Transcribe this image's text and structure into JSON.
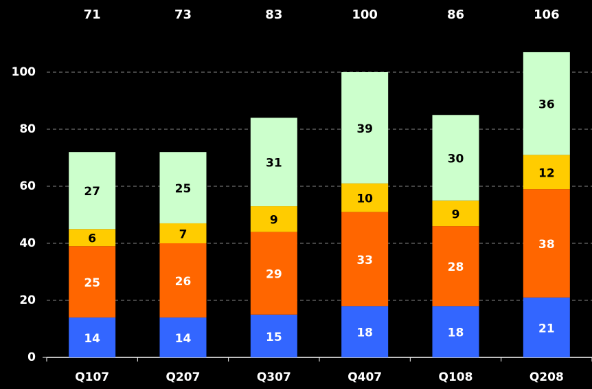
{
  "chart_data": {
    "type": "stacked_bar",
    "categories": [
      "Q107",
      "Q207",
      "Q307",
      "Q407",
      "Q108",
      "Q208"
    ],
    "totals": [
      71,
      73,
      83,
      100,
      86,
      106
    ],
    "series": [
      {
        "color": "#3366ff",
        "label_color": "#ffffff",
        "values": [
          14,
          14,
          15,
          18,
          18,
          21
        ]
      },
      {
        "color": "#ff6600",
        "label_color": "#ffffff",
        "values": [
          25,
          26,
          29,
          33,
          28,
          38
        ]
      },
      {
        "color": "#ffcc00",
        "label_color": "#000000",
        "values": [
          6,
          7,
          9,
          10,
          9,
          12
        ]
      },
      {
        "color": "#ccffcc",
        "label_color": "#000000",
        "values": [
          27,
          25,
          31,
          39,
          30,
          36
        ]
      }
    ],
    "ylim": [
      0,
      100
    ],
    "yticks": [
      0,
      20,
      40,
      60,
      80,
      100
    ],
    "grid": true
  }
}
